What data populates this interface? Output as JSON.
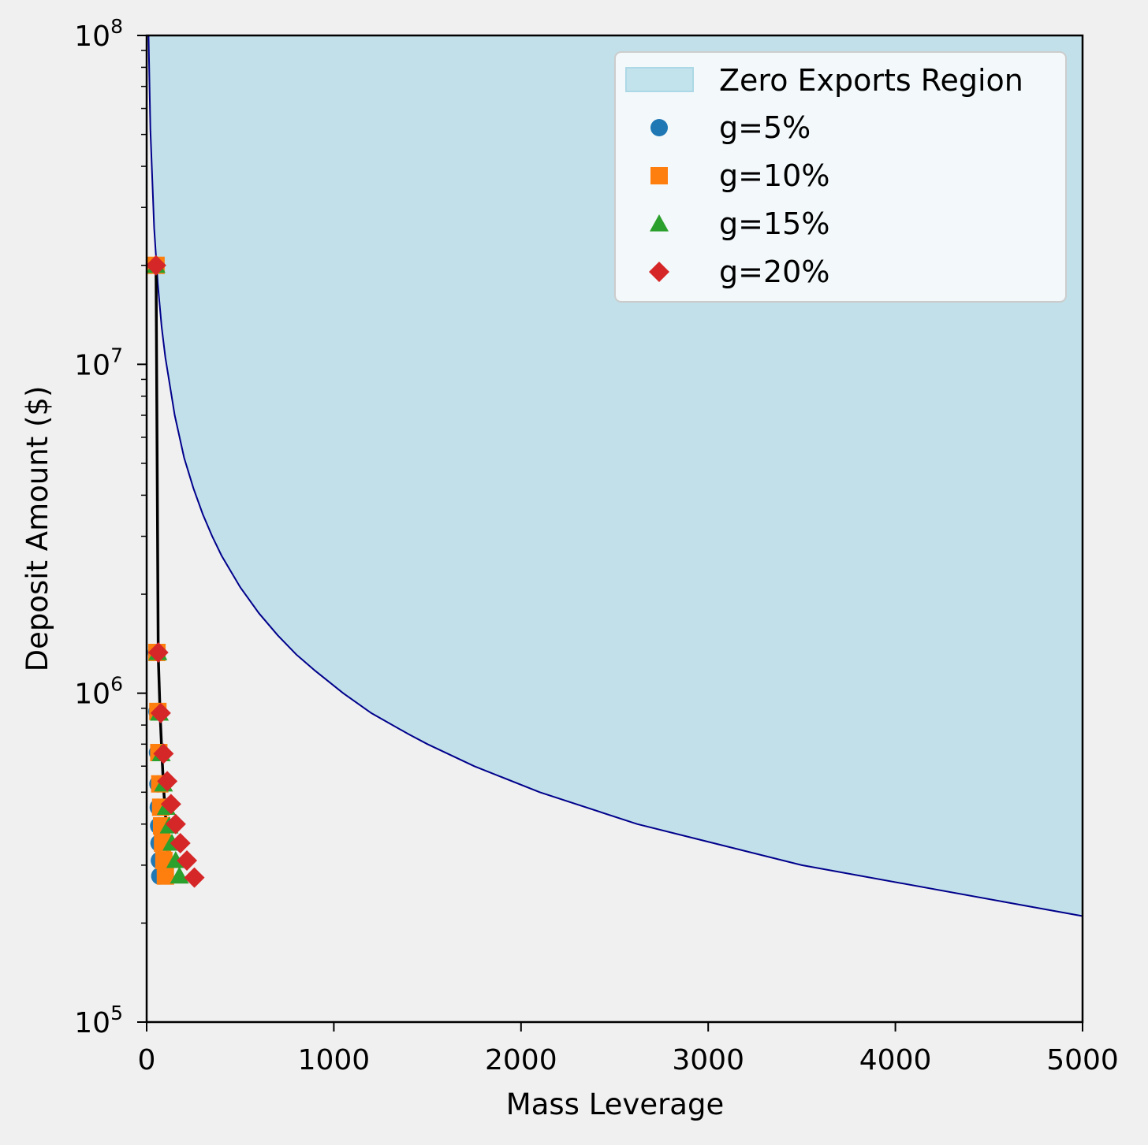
{
  "chart_data": {
    "type": "scatter",
    "title": "",
    "xlabel": "Mass Leverage",
    "ylabel": "Deposit Amount ($)",
    "xlim": [
      0,
      5000
    ],
    "ylim": [
      100000,
      100000000
    ],
    "yscale": "log",
    "grid": false,
    "legend_position": "top-right",
    "x_ticks": [
      {
        "value": 0,
        "label": "0"
      },
      {
        "value": 1000,
        "label": "1000"
      },
      {
        "value": 2000,
        "label": "2000"
      },
      {
        "value": 3000,
        "label": "3000"
      },
      {
        "value": 4000,
        "label": "4000"
      },
      {
        "value": 5000,
        "label": "5000"
      }
    ],
    "y_ticks": [
      {
        "value": 100000,
        "base": "10",
        "exp": "5"
      },
      {
        "value": 1000000,
        "base": "10",
        "exp": "6"
      },
      {
        "value": 10000000,
        "base": "10",
        "exp": "7"
      },
      {
        "value": 100000000,
        "base": "10",
        "exp": "8"
      }
    ],
    "region": {
      "name": "Zero Exports Region",
      "fill_color": "#add8e6",
      "edge_color": "#00008b",
      "boundary": [
        {
          "x": 10,
          "y": 100000000
        },
        {
          "x": 20,
          "y": 52000000
        },
        {
          "x": 40,
          "y": 26000000
        },
        {
          "x": 60,
          "y": 17500000
        },
        {
          "x": 80,
          "y": 13000000
        },
        {
          "x": 100,
          "y": 10500000
        },
        {
          "x": 150,
          "y": 7000000
        },
        {
          "x": 200,
          "y": 5200000
        },
        {
          "x": 250,
          "y": 4200000
        },
        {
          "x": 300,
          "y": 3500000
        },
        {
          "x": 350,
          "y": 3000000
        },
        {
          "x": 400,
          "y": 2620000
        },
        {
          "x": 500,
          "y": 2100000
        },
        {
          "x": 600,
          "y": 1750000
        },
        {
          "x": 700,
          "y": 1500000
        },
        {
          "x": 800,
          "y": 1310000
        },
        {
          "x": 900,
          "y": 1170000
        },
        {
          "x": 1050,
          "y": 1000000
        },
        {
          "x": 1200,
          "y": 870000
        },
        {
          "x": 1400,
          "y": 750000
        },
        {
          "x": 1500,
          "y": 700000
        },
        {
          "x": 1750,
          "y": 600000
        },
        {
          "x": 2100,
          "y": 500000
        },
        {
          "x": 2620,
          "y": 400000
        },
        {
          "x": 3500,
          "y": 300000
        },
        {
          "x": 5000,
          "y": 210000
        }
      ]
    },
    "trend_line": [
      {
        "x": 50,
        "y": 20000000
      },
      {
        "x": 62,
        "y": 1300000
      },
      {
        "x": 72,
        "y": 860000
      },
      {
        "x": 82,
        "y": 640000
      },
      {
        "x": 90,
        "y": 520000
      },
      {
        "x": 97,
        "y": 455000
      },
      {
        "x": 103,
        "y": 405000
      },
      {
        "x": 108,
        "y": 365000
      },
      {
        "x": 112,
        "y": 330000
      },
      {
        "x": 115,
        "y": 280000
      }
    ],
    "series": [
      {
        "name": "g=5%",
        "color": "#1f77b4",
        "marker": "circle",
        "points": [
          {
            "x": 50,
            "y": 20000000
          },
          {
            "x": 52,
            "y": 1330000
          },
          {
            "x": 55,
            "y": 880000
          },
          {
            "x": 58,
            "y": 660000
          },
          {
            "x": 60,
            "y": 530000
          },
          {
            "x": 62,
            "y": 450000
          },
          {
            "x": 64,
            "y": 395000
          },
          {
            "x": 66,
            "y": 350000
          },
          {
            "x": 68,
            "y": 310000
          },
          {
            "x": 70,
            "y": 278000
          }
        ]
      },
      {
        "name": "g=10%",
        "color": "#ff7f0e",
        "marker": "square",
        "points": [
          {
            "x": 50,
            "y": 20000000
          },
          {
            "x": 55,
            "y": 1330000
          },
          {
            "x": 60,
            "y": 880000
          },
          {
            "x": 65,
            "y": 660000
          },
          {
            "x": 70,
            "y": 530000
          },
          {
            "x": 75,
            "y": 450000
          },
          {
            "x": 80,
            "y": 395000
          },
          {
            "x": 85,
            "y": 350000
          },
          {
            "x": 92,
            "y": 310000
          },
          {
            "x": 100,
            "y": 278000
          }
        ]
      },
      {
        "name": "g=15%",
        "color": "#2ca02c",
        "marker": "triangle",
        "points": [
          {
            "x": 50,
            "y": 20000000
          },
          {
            "x": 60,
            "y": 1330000
          },
          {
            "x": 68,
            "y": 870000
          },
          {
            "x": 78,
            "y": 655000
          },
          {
            "x": 90,
            "y": 530000
          },
          {
            "x": 105,
            "y": 450000
          },
          {
            "x": 120,
            "y": 395000
          },
          {
            "x": 135,
            "y": 350000
          },
          {
            "x": 155,
            "y": 310000
          },
          {
            "x": 175,
            "y": 278000
          }
        ]
      },
      {
        "name": "g=20%",
        "color": "#d62728",
        "marker": "diamond",
        "points": [
          {
            "x": 50,
            "y": 20000000
          },
          {
            "x": 62,
            "y": 1330000
          },
          {
            "x": 75,
            "y": 870000
          },
          {
            "x": 90,
            "y": 655000
          },
          {
            "x": 110,
            "y": 540000
          },
          {
            "x": 130,
            "y": 460000
          },
          {
            "x": 155,
            "y": 400000
          },
          {
            "x": 180,
            "y": 350000
          },
          {
            "x": 215,
            "y": 310000
          },
          {
            "x": 255,
            "y": 275000
          }
        ]
      }
    ]
  }
}
